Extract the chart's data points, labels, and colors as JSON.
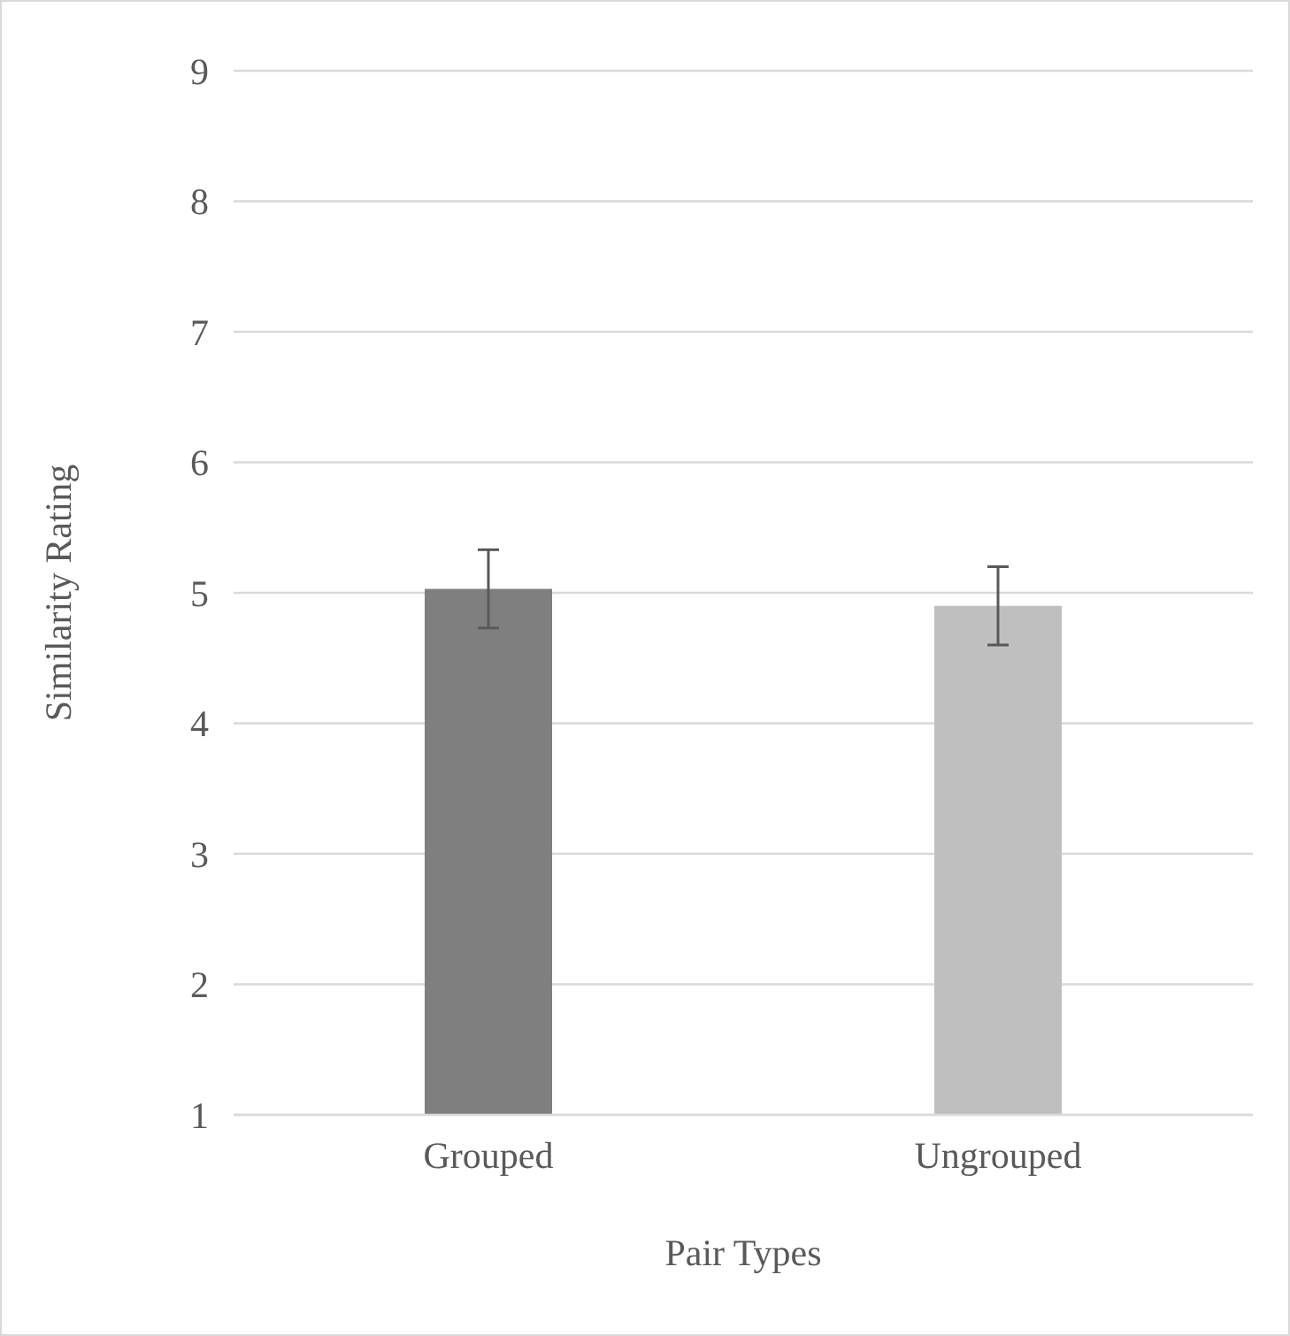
{
  "chart_data": {
    "type": "bar",
    "xlabel": "Pair Types",
    "ylabel": "Similarity Rating",
    "categories": [
      "Grouped",
      "Ungrouped"
    ],
    "values": [
      5.03,
      4.9
    ],
    "colors": [
      "#7f7f7f",
      "#bfbfbf"
    ],
    "errors": [
      0.3,
      0.3
    ],
    "ylim": [
      1,
      9
    ],
    "yticks": [
      1,
      2,
      3,
      4,
      5,
      6,
      7,
      8,
      9
    ],
    "grid": "y"
  }
}
